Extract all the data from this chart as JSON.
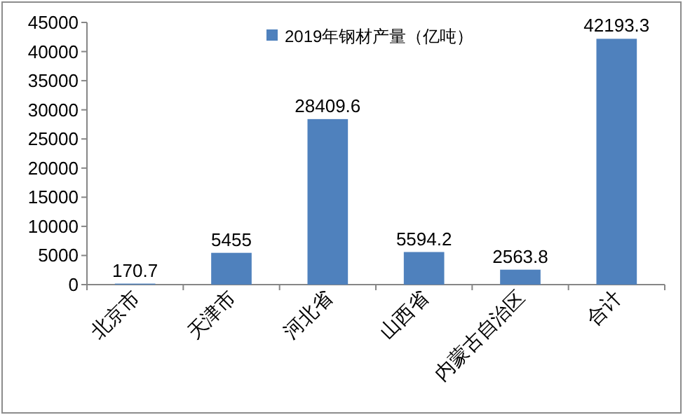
{
  "chart_data": {
    "type": "bar",
    "categories": [
      "北京市",
      "天津市",
      "河北省",
      "山西省",
      "内蒙古自治区",
      "合计"
    ],
    "series": [
      {
        "name": "2019年钢材产量（亿吨）",
        "color": "#4f81bd",
        "values": [
          170.7,
          5455,
          28409.6,
          5594.2,
          2563.8,
          42193.3
        ]
      }
    ],
    "ylim": [
      0,
      45000
    ],
    "yticks": [
      0,
      5000,
      10000,
      15000,
      20000,
      25000,
      30000,
      35000,
      40000,
      45000
    ],
    "data_labels": true,
    "legend": "top",
    "grid": false
  }
}
